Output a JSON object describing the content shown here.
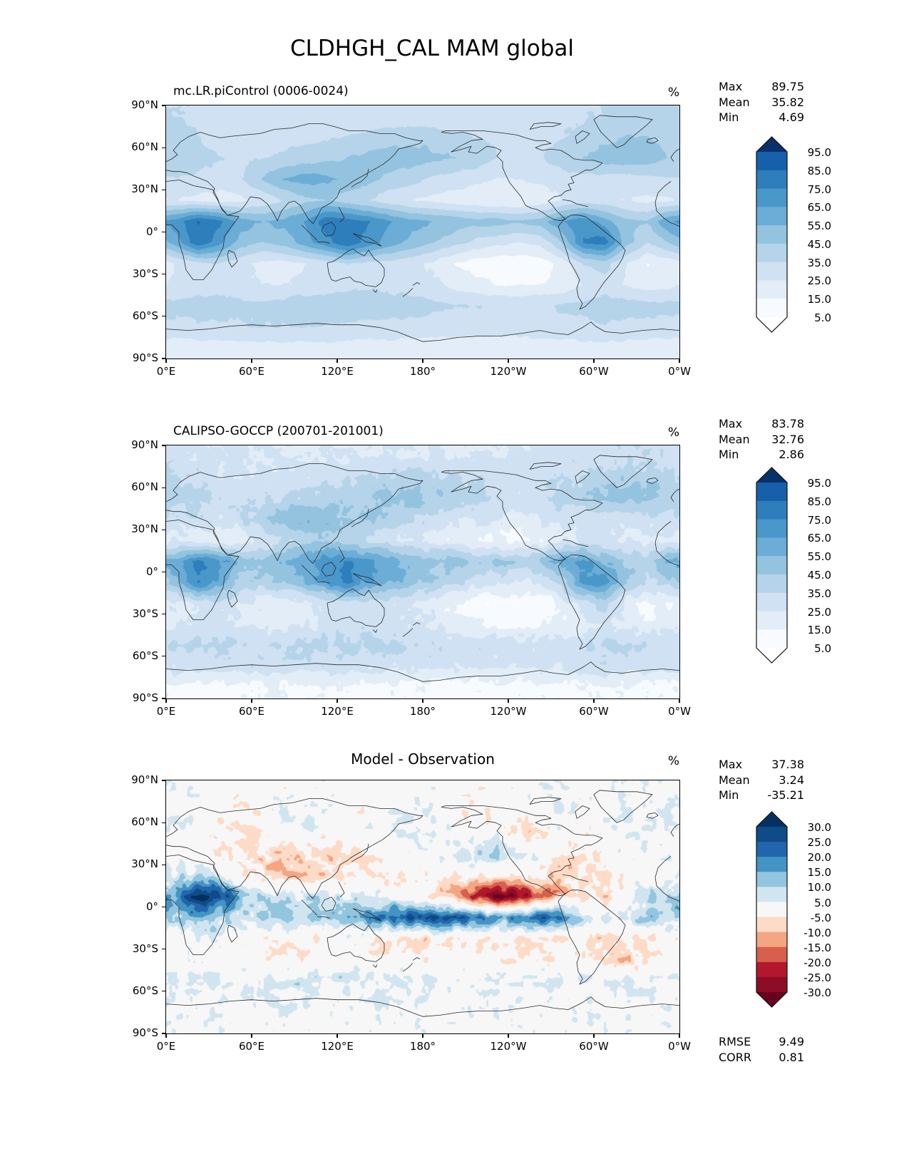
{
  "figure_title": "CLDHGH_CAL MAM global",
  "axes": {
    "lat_tick_labels": [
      "90°N",
      "60°N",
      "30°N",
      "0°",
      "30°S",
      "60°S",
      "90°S"
    ],
    "lon_tick_labels": [
      "0°E",
      "60°E",
      "120°E",
      "180°",
      "120°W",
      "60°W",
      "0°W"
    ]
  },
  "chart_data": [
    {
      "type": "heatmap",
      "panel": "model",
      "title": "mc.LR.piControl (0006-0024)",
      "units": "%",
      "stats": [
        {
          "label": "Max",
          "value": "89.75"
        },
        {
          "label": "Mean",
          "value": "35.82"
        },
        {
          "label": "Min",
          "value": "4.69"
        }
      ],
      "colorbar": {
        "tick_labels": [
          "95.0",
          "85.0",
          "75.0",
          "65.0",
          "55.0",
          "45.0",
          "35.0",
          "25.0",
          "15.0",
          "5.0"
        ],
        "levels": [
          5,
          15,
          25,
          35,
          45,
          55,
          65,
          75,
          85,
          95
        ],
        "band_colors": [
          "#f7fbff",
          "#e2edf8",
          "#cfe1f2",
          "#b5d4e9",
          "#93c3df",
          "#6badd6",
          "#4a97c9",
          "#2e7ebc",
          "#1660aa"
        ],
        "under_color": "#ffffff",
        "over_color": "#08306b"
      },
      "grid": {
        "lon_start": 7.5,
        "lon_step": 15,
        "lat_start": 82.5,
        "lat_step": -15,
        "values": [
          [
            35,
            33,
            32,
            30,
            30,
            28,
            28,
            27,
            27,
            28,
            28,
            28,
            28,
            27,
            27,
            28,
            30,
            32,
            33,
            34,
            36,
            38,
            38,
            36
          ],
          [
            38,
            35,
            30,
            28,
            28,
            30,
            32,
            33,
            35,
            38,
            40,
            42,
            40,
            38,
            35,
            32,
            30,
            32,
            35,
            38,
            42,
            45,
            45,
            40
          ],
          [
            42,
            40,
            35,
            33,
            35,
            38,
            40,
            42,
            45,
            48,
            52,
            50,
            48,
            45,
            40,
            35,
            33,
            35,
            40,
            45,
            50,
            52,
            50,
            45
          ],
          [
            35,
            32,
            30,
            35,
            45,
            55,
            60,
            58,
            52,
            48,
            42,
            38,
            33,
            30,
            28,
            25,
            25,
            28,
            30,
            32,
            30,
            30,
            32,
            33
          ],
          [
            25,
            22,
            20,
            22,
            28,
            35,
            42,
            45,
            40,
            35,
            28,
            25,
            22,
            20,
            18,
            15,
            15,
            18,
            25,
            30,
            28,
            25,
            22,
            24
          ],
          [
            70,
            86,
            78,
            60,
            55,
            58,
            65,
            82,
            80,
            75,
            65,
            58,
            55,
            52,
            48,
            50,
            46,
            50,
            65,
            72,
            60,
            48,
            45,
            65
          ],
          [
            60,
            84,
            68,
            50,
            45,
            50,
            60,
            72,
            84,
            70,
            60,
            52,
            45,
            38,
            32,
            28,
            25,
            28,
            45,
            76,
            80,
            50,
            35,
            45
          ],
          [
            25,
            32,
            35,
            28,
            22,
            20,
            25,
            30,
            35,
            32,
            30,
            28,
            22,
            15,
            10,
            8,
            8,
            10,
            18,
            35,
            40,
            25,
            15,
            18
          ],
          [
            28,
            30,
            30,
            28,
            25,
            25,
            28,
            30,
            32,
            33,
            32,
            30,
            28,
            22,
            18,
            15,
            14,
            15,
            18,
            25,
            30,
            25,
            20,
            22
          ],
          [
            38,
            40,
            40,
            38,
            38,
            40,
            42,
            42,
            42,
            42,
            40,
            40,
            38,
            36,
            35,
            34,
            34,
            35,
            36,
            38,
            40,
            40,
            38,
            38
          ],
          [
            32,
            33,
            34,
            34,
            35,
            35,
            35,
            34,
            33,
            32,
            32,
            31,
            30,
            30,
            30,
            30,
            30,
            31,
            32,
            33,
            34,
            33,
            32,
            32
          ],
          [
            20,
            20,
            20,
            20,
            21,
            21,
            21,
            21,
            20,
            20,
            20,
            20,
            19,
            19,
            19,
            19,
            19,
            20,
            20,
            21,
            21,
            21,
            20,
            20
          ]
        ]
      }
    },
    {
      "type": "heatmap",
      "panel": "observation",
      "title": "CALIPSO-GOCCP (200701-201001)",
      "units": "%",
      "stats": [
        {
          "label": "Max",
          "value": "83.78"
        },
        {
          "label": "Mean",
          "value": "32.76"
        },
        {
          "label": "Min",
          "value": "2.86"
        }
      ],
      "colorbar": {
        "tick_labels": [
          "95.0",
          "85.0",
          "75.0",
          "65.0",
          "55.0",
          "45.0",
          "35.0",
          "25.0",
          "15.0",
          "5.0"
        ],
        "levels": [
          5,
          15,
          25,
          35,
          45,
          55,
          65,
          75,
          85,
          95
        ],
        "band_colors": [
          "#f7fbff",
          "#e2edf8",
          "#cfe1f2",
          "#b5d4e9",
          "#93c3df",
          "#6badd6",
          "#4a97c9",
          "#2e7ebc",
          "#1660aa"
        ],
        "under_color": "#ffffff",
        "over_color": "#08306b"
      },
      "grid": {
        "lon_start": 7.5,
        "lon_step": 15,
        "lat_start": 82.5,
        "lat_step": -15,
        "values": [
          [
            30,
            28,
            27,
            26,
            25,
            25,
            24,
            24,
            24,
            25,
            25,
            25,
            25,
            24,
            24,
            25,
            26,
            28,
            29,
            30,
            32,
            33,
            33,
            31
          ],
          [
            35,
            32,
            28,
            26,
            26,
            28,
            30,
            31,
            33,
            36,
            38,
            40,
            38,
            36,
            33,
            30,
            28,
            30,
            33,
            36,
            40,
            42,
            42,
            38
          ],
          [
            40,
            38,
            33,
            31,
            33,
            36,
            38,
            40,
            43,
            46,
            50,
            48,
            46,
            43,
            38,
            33,
            31,
            33,
            38,
            43,
            48,
            50,
            48,
            43
          ],
          [
            33,
            30,
            28,
            33,
            43,
            52,
            56,
            54,
            48,
            45,
            40,
            36,
            31,
            28,
            26,
            23,
            23,
            26,
            28,
            30,
            28,
            28,
            30,
            31
          ],
          [
            22,
            20,
            18,
            20,
            26,
            35,
            40,
            42,
            38,
            33,
            26,
            23,
            20,
            18,
            16,
            13,
            13,
            16,
            23,
            28,
            26,
            23,
            20,
            22
          ],
          [
            62,
            78,
            70,
            52,
            48,
            52,
            60,
            72,
            75,
            68,
            58,
            52,
            50,
            48,
            45,
            47,
            42,
            45,
            60,
            66,
            55,
            44,
            42,
            58
          ],
          [
            52,
            74,
            60,
            44,
            40,
            45,
            55,
            66,
            78,
            64,
            55,
            48,
            42,
            35,
            30,
            26,
            23,
            26,
            42,
            68,
            70,
            46,
            32,
            40
          ],
          [
            22,
            28,
            31,
            25,
            20,
            18,
            22,
            27,
            32,
            30,
            28,
            26,
            20,
            14,
            9,
            7,
            7,
            9,
            16,
            32,
            36,
            22,
            13,
            16
          ],
          [
            25,
            27,
            27,
            25,
            22,
            22,
            25,
            27,
            29,
            30,
            29,
            27,
            25,
            20,
            16,
            13,
            12,
            13,
            16,
            22,
            27,
            22,
            18,
            20
          ],
          [
            34,
            36,
            36,
            34,
            34,
            36,
            38,
            38,
            38,
            38,
            36,
            36,
            34,
            32,
            31,
            30,
            30,
            31,
            32,
            34,
            36,
            36,
            34,
            34
          ],
          [
            28,
            29,
            30,
            30,
            31,
            31,
            31,
            30,
            29,
            28,
            28,
            27,
            26,
            26,
            26,
            26,
            26,
            27,
            28,
            29,
            30,
            29,
            28,
            28
          ],
          [
            12,
            12,
            12,
            12,
            13,
            13,
            13,
            13,
            12,
            12,
            12,
            12,
            11,
            11,
            11,
            11,
            11,
            12,
            12,
            13,
            13,
            13,
            12,
            12
          ]
        ]
      }
    },
    {
      "type": "heatmap",
      "panel": "difference",
      "title": "Model - Observation",
      "units": "%",
      "stats": [
        {
          "label": "Max",
          "value": "37.38"
        },
        {
          "label": "Mean",
          "value": "3.24"
        },
        {
          "label": "Min",
          "value": "-35.21"
        }
      ],
      "extra_stats": [
        {
          "label": "RMSE",
          "value": "9.49"
        },
        {
          "label": "CORR",
          "value": "0.81"
        }
      ],
      "colorbar": {
        "tick_labels": [
          "30.0",
          "25.0",
          "20.0",
          "15.0",
          "10.0",
          "5.0",
          "-5.0",
          "-10.0",
          "-15.0",
          "-20.0",
          "-25.0",
          "-30.0"
        ],
        "levels": [
          -30,
          -25,
          -20,
          -15,
          -10,
          -5,
          5,
          10,
          15,
          20,
          25,
          30
        ],
        "band_colors": [
          "#8c0d25",
          "#b2182b",
          "#d6604d",
          "#f4a582",
          "#fddbc7",
          "#f7f7f7",
          "#d1e5f0",
          "#92c5de",
          "#4393c3",
          "#2166ac",
          "#0f4c87"
        ],
        "under_color": "#67001f",
        "over_color": "#053061"
      },
      "grid": {
        "lon_start": 7.5,
        "lon_step": 15,
        "lat_start": 82.5,
        "lat_step": -15,
        "values": [
          [
            2,
            1,
            1,
            0,
            1,
            -1,
            0,
            1,
            1,
            0,
            1,
            1,
            1,
            0,
            -1,
            0,
            1,
            2,
            2,
            1,
            2,
            3,
            2,
            1
          ],
          [
            4,
            2,
            -2,
            -3,
            0,
            3,
            4,
            2,
            0,
            -2,
            2,
            4,
            3,
            0,
            -3,
            -2,
            0,
            4,
            6,
            3,
            2,
            4,
            5,
            4
          ],
          [
            3,
            0,
            -3,
            -4,
            -2,
            2,
            3,
            0,
            -2,
            2,
            4,
            5,
            4,
            2,
            -2,
            3,
            -5,
            -6,
            2,
            -3,
            2,
            5,
            4,
            3
          ],
          [
            0,
            -2,
            -4,
            -3,
            -6,
            -8,
            -6,
            -8,
            -6,
            -4,
            -2,
            0,
            3,
            5,
            8,
            10,
            8,
            4,
            -4,
            -6,
            -2,
            2,
            2,
            1
          ],
          [
            8,
            10,
            6,
            -2,
            -8,
            -12,
            -9,
            -6,
            -5,
            -4,
            -3,
            -3,
            -2,
            -2,
            -3,
            -4,
            -5,
            -4,
            -8,
            -6,
            -4,
            -2,
            0,
            2
          ],
          [
            20,
            32,
            28,
            12,
            8,
            6,
            5,
            8,
            6,
            4,
            2,
            -2,
            -6,
            -12,
            -22,
            -30,
            -28,
            -18,
            -10,
            -6,
            -8,
            2,
            8,
            12
          ],
          [
            12,
            15,
            10,
            8,
            10,
            12,
            10,
            12,
            15,
            18,
            22,
            26,
            28,
            25,
            20,
            15,
            18,
            25,
            20,
            8,
            5,
            8,
            10,
            10
          ],
          [
            -2,
            3,
            5,
            2,
            -2,
            -4,
            -3,
            -2,
            0,
            -3,
            -8,
            -8,
            -6,
            -5,
            -4,
            -3,
            -4,
            -5,
            -6,
            -3,
            -8,
            -6,
            -4,
            -3
          ],
          [
            0,
            2,
            2,
            0,
            -2,
            -3,
            -2,
            0,
            2,
            0,
            -2,
            -3,
            -2,
            -2,
            -1,
            -2,
            -3,
            -2,
            -3,
            -2,
            -6,
            -8,
            -5,
            -2
          ],
          [
            4,
            5,
            5,
            4,
            4,
            5,
            6,
            6,
            6,
            5,
            5,
            4,
            4,
            4,
            5,
            5,
            4,
            4,
            4,
            5,
            5,
            6,
            5,
            4
          ],
          [
            3,
            3,
            4,
            4,
            4,
            4,
            4,
            3,
            3,
            3,
            3,
            3,
            2,
            2,
            3,
            3,
            3,
            3,
            3,
            3,
            4,
            4,
            3,
            3
          ],
          [
            2,
            2,
            2,
            1,
            1,
            1,
            1,
            1,
            1,
            1,
            1,
            1,
            1,
            1,
            1,
            1,
            1,
            1,
            1,
            2,
            2,
            2,
            2,
            2
          ]
        ]
      }
    }
  ]
}
